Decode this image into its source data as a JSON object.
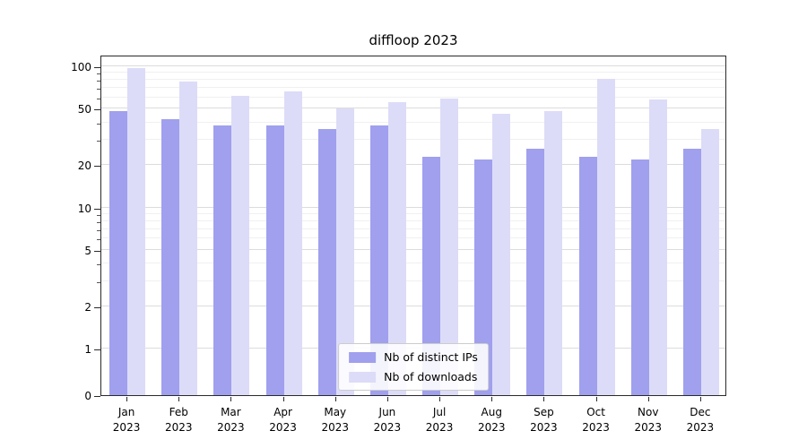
{
  "title": "diffloop 2023",
  "chart_data": {
    "type": "bar",
    "title": "diffloop 2023",
    "yscale": "symlog",
    "grid": true,
    "year": "2023",
    "months": [
      "Jan",
      "Feb",
      "Mar",
      "Apr",
      "May",
      "Jun",
      "Jul",
      "Aug",
      "Sep",
      "Oct",
      "Nov",
      "Dec"
    ],
    "categories": [
      "Jan 2023",
      "Feb 2023",
      "Mar 2023",
      "Apr 2023",
      "May 2023",
      "Jun 2023",
      "Jul 2023",
      "Aug 2023",
      "Sep 2023",
      "Oct 2023",
      "Nov 2023",
      "Dec 2023"
    ],
    "series": [
      {
        "name": "Nb of distinct IPs",
        "color": "#a0a0ee",
        "values": [
          48,
          42,
          38,
          38,
          36,
          38,
          23,
          22,
          26,
          23,
          22,
          26
        ]
      },
      {
        "name": "Nb of downloads",
        "color": "#dcdcf8",
        "values": [
          97,
          78,
          62,
          66,
          50,
          56,
          59,
          46,
          48,
          81,
          58,
          36
        ]
      }
    ],
    "y_major_ticks": [
      0,
      1,
      2,
      5,
      10,
      20,
      50,
      100
    ],
    "y_minor_ticks": [
      3,
      4,
      6,
      7,
      8,
      9,
      30,
      40,
      60,
      70,
      80,
      90
    ],
    "ylim": [
      0,
      115
    ],
    "xlabel": "",
    "ylabel": "",
    "legend": {
      "position": "lower center",
      "entries": [
        "Nb of distinct IPs",
        "Nb of downloads"
      ]
    }
  },
  "colors": {
    "background": "#ffffff",
    "frame": "#2a2a2a",
    "grid_major": "#dcdcdc",
    "grid_minor": "#f0f0f0",
    "ips_bar": "#a0a0ee",
    "downloads_bar": "#dcdcf8",
    "legend_border": "#cccccc"
  }
}
